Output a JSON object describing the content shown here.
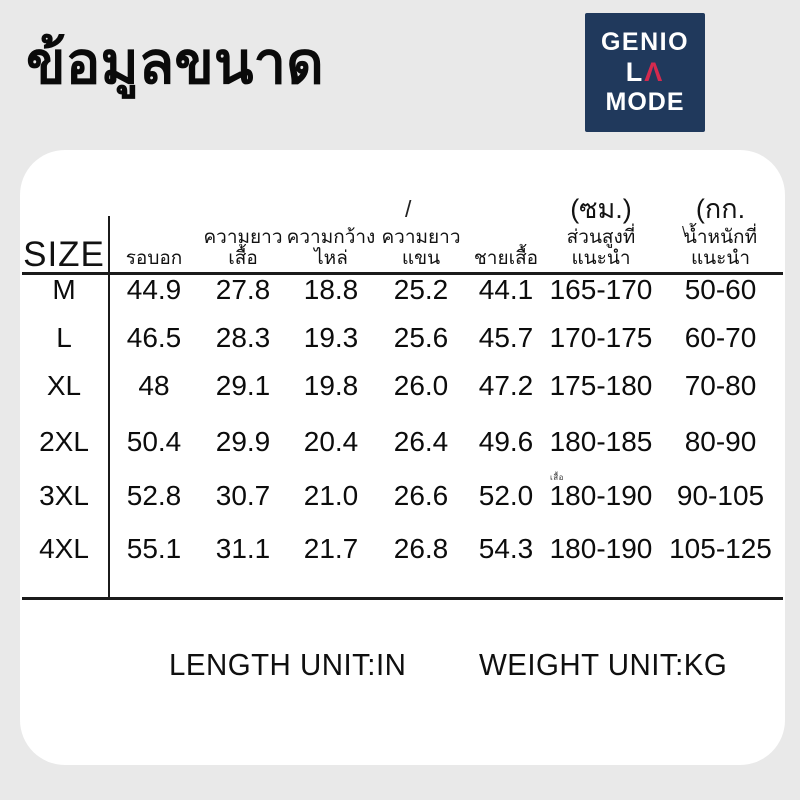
{
  "page": {
    "title": "ข้อมูลขนาด"
  },
  "logo": {
    "line1": "GENIO",
    "line2_l": "L",
    "line2_a": "Λ",
    "line3": "MODE",
    "bg_color": "#20395c",
    "accent_color": "#d42a4e"
  },
  "table": {
    "size_header": "SIZE",
    "columns": [
      {
        "line1": "รอบอก",
        "line2": ""
      },
      {
        "line1": "ความยาว",
        "line2": "เสื้อ"
      },
      {
        "line1": "ความกว้าง",
        "line2": "ไหล่"
      },
      {
        "line1": "ความยาว",
        "line2": "แขน"
      },
      {
        "line1": "ชายเสื้อ",
        "line2": ""
      },
      {
        "unit": "(ซม.)",
        "line1": "ส่วนสูงที่",
        "line2": "แนะนำ"
      },
      {
        "unit": "(กก.",
        "line1": "น้ำหนักที่",
        "line2": "แนะนำ"
      }
    ],
    "rows": [
      {
        "size": "M",
        "values": [
          "44.9",
          "27.8",
          "18.8",
          "25.2",
          "44.1",
          "165-170",
          "50-60"
        ]
      },
      {
        "size": "L",
        "values": [
          "46.5",
          "28.3",
          "19.3",
          "25.6",
          "45.7",
          "170-175",
          "60-70"
        ]
      },
      {
        "size": "XL",
        "values": [
          "48",
          "29.1",
          "19.8",
          "26.0",
          "47.2",
          "175-180",
          "70-80"
        ]
      },
      {
        "size": "2XL",
        "values": [
          "50.4",
          "29.9",
          "20.4",
          "26.4",
          "49.6",
          "180-185",
          "80-90"
        ]
      },
      {
        "size": "3XL",
        "values": [
          "52.8",
          "30.7",
          "21.0",
          "26.6",
          "52.0",
          "180-190",
          "90-105"
        ]
      },
      {
        "size": "4XL",
        "values": [
          "55.1",
          "31.1",
          "21.7",
          "26.8",
          "54.3",
          "180-190",
          "105-125"
        ]
      }
    ]
  },
  "footer": {
    "length_unit": "LENGTH UNIT:IN",
    "weight_unit": "WEIGHT UNIT:KG"
  },
  "artifacts": {
    "slash_mark": "/",
    "backslash_mark": "\\",
    "tiny_text": "เสื้อ"
  }
}
